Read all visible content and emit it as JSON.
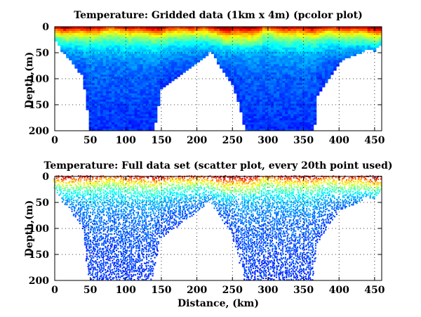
{
  "chart_data": [
    {
      "type": "heatmap",
      "variant": "pcolor",
      "title": "Temperature: Gridded data (1km x 4m) (pcolor plot)",
      "xlabel": "",
      "ylabel": "Depth,(m)",
      "xlim": [
        0,
        460
      ],
      "ylim": [
        0,
        200
      ],
      "y_reversed": true,
      "grid": true,
      "grid_style": "dotted",
      "colormap": "jet",
      "xticks": [
        0,
        50,
        100,
        150,
        200,
        250,
        300,
        350,
        400,
        450
      ],
      "yticks": [
        0,
        50,
        100,
        150,
        200
      ],
      "xtick_labels": [
        "0",
        "50",
        "100",
        "150",
        "200",
        "250",
        "300",
        "350",
        "400",
        "450"
      ],
      "ytick_labels": [
        "0",
        "50",
        "100",
        "150",
        "200"
      ],
      "bottom_depth_profile": {
        "distance_km": [
          0,
          10,
          20,
          30,
          40,
          45,
          50,
          60,
          70,
          100,
          130,
          140,
          150,
          160,
          170,
          180,
          200,
          210,
          220,
          230,
          240,
          250,
          260,
          268,
          280,
          300,
          340,
          365,
          370,
          380,
          390,
          400,
          410,
          420,
          430,
          440,
          450,
          460
        ],
        "depth_m": [
          20,
          45,
          60,
          80,
          95,
          150,
          200,
          200,
          200,
          200,
          200,
          200,
          120,
          110,
          100,
          90,
          70,
          60,
          45,
          70,
          90,
          110,
          150,
          200,
          200,
          200,
          200,
          200,
          130,
          110,
          90,
          70,
          60,
          55,
          50,
          40,
          45,
          30
        ]
      }
    },
    {
      "type": "scatter",
      "variant": "colored scatter",
      "title": "Temperature: Full data set (scatter plot, every 20th point used)",
      "xlabel": "Distance, (km)",
      "ylabel": "Depth,(m)",
      "xlim": [
        0,
        460
      ],
      "ylim": [
        0,
        200
      ],
      "y_reversed": true,
      "grid": true,
      "grid_style": "dotted",
      "colormap": "jet",
      "xticks": [
        0,
        50,
        100,
        150,
        200,
        250,
        300,
        350,
        400,
        450
      ],
      "yticks": [
        0,
        50,
        100,
        150,
        200
      ],
      "xtick_labels": [
        "0",
        "50",
        "100",
        "150",
        "200",
        "250",
        "300",
        "350",
        "400",
        "450"
      ],
      "ytick_labels": [
        "0",
        "50",
        "100",
        "150",
        "200"
      ],
      "bottom_depth_profile": {
        "distance_km": [
          0,
          10,
          20,
          30,
          40,
          45,
          50,
          60,
          70,
          100,
          130,
          140,
          150,
          160,
          170,
          180,
          200,
          210,
          220,
          230,
          240,
          250,
          260,
          268,
          280,
          300,
          340,
          365,
          370,
          380,
          390,
          400,
          410,
          420,
          430,
          440,
          450,
          460
        ],
        "depth_m": [
          20,
          45,
          60,
          80,
          95,
          150,
          200,
          200,
          200,
          200,
          200,
          200,
          120,
          110,
          100,
          90,
          70,
          60,
          45,
          70,
          90,
          110,
          150,
          200,
          200,
          200,
          200,
          200,
          130,
          110,
          90,
          70,
          60,
          55,
          50,
          40,
          45,
          30
        ]
      }
    }
  ]
}
